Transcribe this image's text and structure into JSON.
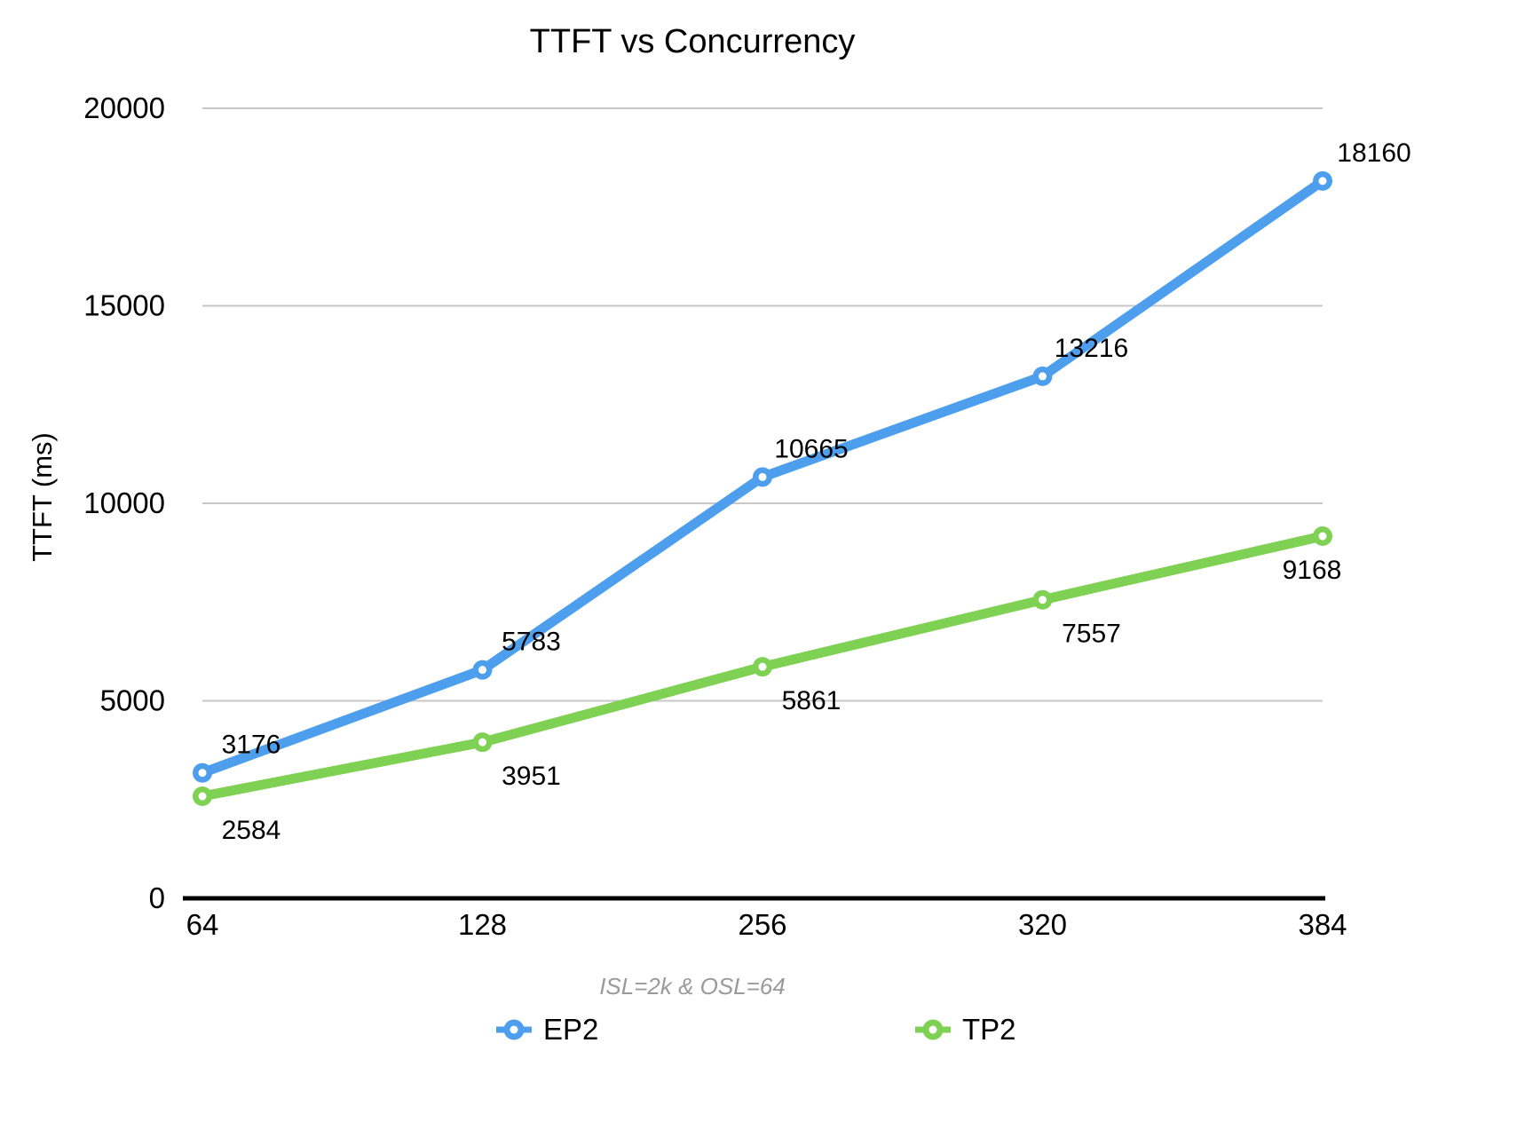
{
  "chart_data": {
    "type": "line",
    "title": "TTFT vs Concurrency",
    "caption": "ISL=2k & OSL=64",
    "ylabel": "TTFT (ms)",
    "xlabel": "",
    "categories": [
      "64",
      "128",
      "256",
      "320",
      "384"
    ],
    "series": [
      {
        "name": "EP2",
        "color": "#4D9FEE",
        "values": [
          3176,
          5783,
          10665,
          13216,
          18160
        ]
      },
      {
        "name": "TP2",
        "color": "#7ED152",
        "values": [
          2584,
          3951,
          5861,
          7557,
          9168
        ]
      }
    ],
    "y_ticks": [
      0,
      5000,
      10000,
      15000,
      20000
    ],
    "ylim": [
      0,
      20000
    ],
    "grid": "horizontal-only",
    "legend_position": "bottom",
    "colors": {
      "grid": "#C7C7C7",
      "axis": "#000000",
      "data_label": "#000000",
      "caption_text": "#9A9A9A",
      "marker_hole": "#FFFFFF"
    }
  }
}
